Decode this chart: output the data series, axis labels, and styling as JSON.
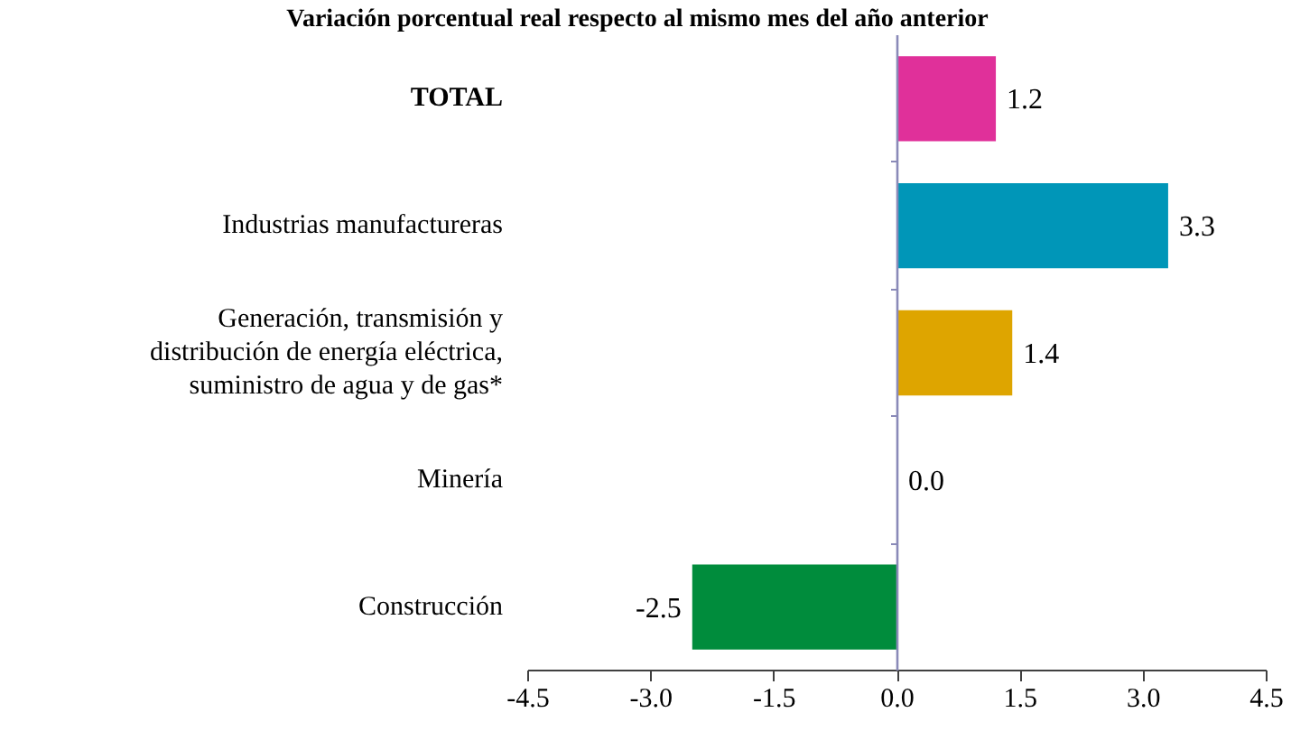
{
  "chart_data": {
    "type": "bar",
    "orientation": "horizontal",
    "title": "Variación porcentual real respecto al mismo mes del año anterior",
    "categories": [
      "TOTAL",
      "Industrias manufactureras",
      "Generación, transmisión y distribución de energía eléctrica, suministro de agua y de gas*",
      "Minería",
      "Construcción"
    ],
    "values": [
      1.2,
      3.3,
      1.4,
      0.0,
      -2.5
    ],
    "value_labels": [
      "1.2",
      "3.3",
      "1.4",
      "0.0",
      "-2.5"
    ],
    "colors": [
      "#e0309a",
      "#0096b8",
      "#dea500",
      null,
      "#008c3c"
    ],
    "xlim": [
      -4.5,
      4.5
    ],
    "xticks": [
      -4.5,
      {
        "value": -3,
        "label": "-3.0"
      },
      -1.5,
      {
        "value": 0,
        "label": "0.0"
      },
      1.5,
      {
        "value": 3,
        "label": "3.0"
      },
      4.5
    ],
    "ref_lines": [
      {
        "axis": "x",
        "value": 0,
        "color": "#8a8ab8"
      }
    ],
    "grid": false
  }
}
